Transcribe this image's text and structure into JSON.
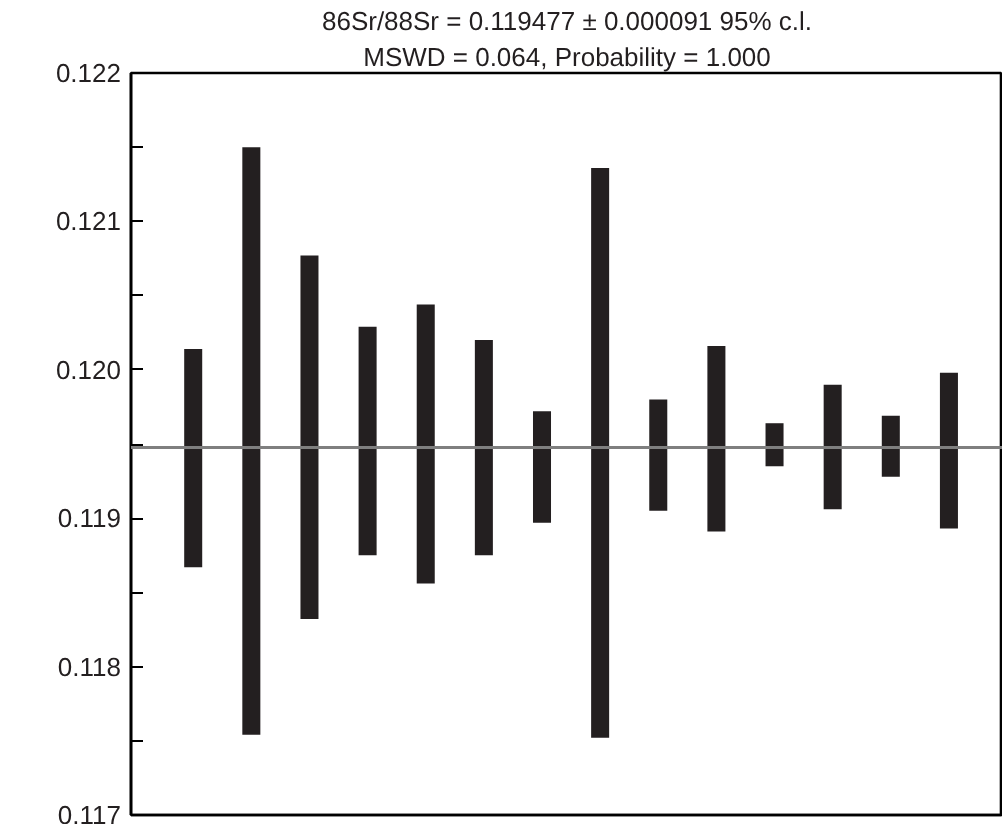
{
  "chart_data": {
    "type": "bar",
    "categories": [
      null,
      null,
      null,
      null,
      null,
      null,
      null,
      null,
      null,
      null,
      null,
      null,
      null,
      null
    ],
    "base": [
      0.11867,
      0.11754,
      0.11832,
      0.11875,
      0.11856,
      0.11875,
      0.11897,
      0.11752,
      0.11905,
      0.11891,
      0.11935,
      0.11906,
      0.11928,
      0.11893
    ],
    "values": [
      0.00147,
      0.00396,
      0.00245,
      0.00154,
      0.00188,
      0.00145,
      0.00075,
      0.00384,
      0.00075,
      0.00125,
      0.00029,
      0.00084,
      0.00041,
      0.00105
    ],
    "color": "#231f20",
    "ylim": [
      0.117,
      0.122
    ],
    "yticks": [
      {
        "value": 0.117,
        "label": "0.117"
      },
      {
        "value": 0.1175,
        "label": null
      },
      {
        "value": 0.118,
        "label": "0.118"
      },
      {
        "value": 0.1185,
        "label": null
      },
      {
        "value": 0.119,
        "label": "0.119"
      },
      {
        "value": 0.1195,
        "label": null
      },
      {
        "value": 0.12,
        "label": "0.120"
      },
      {
        "value": 0.1205,
        "label": null
      },
      {
        "value": 0.121,
        "label": "0.121"
      },
      {
        "value": 0.1215,
        "label": null
      },
      {
        "value": 0.122,
        "label": "0.122"
      }
    ],
    "ref_lines": [
      {
        "axis": "y",
        "value": 0.119477,
        "label": null,
        "color": "#7f7f7f"
      }
    ],
    "annotations": [
      "86Sr/88Sr = 0.119477 ± 0.000091 95% c.l.",
      "MSWD = 0.064, Probability = 1.000"
    ],
    "tick_labels": "y",
    "grid": false
  }
}
